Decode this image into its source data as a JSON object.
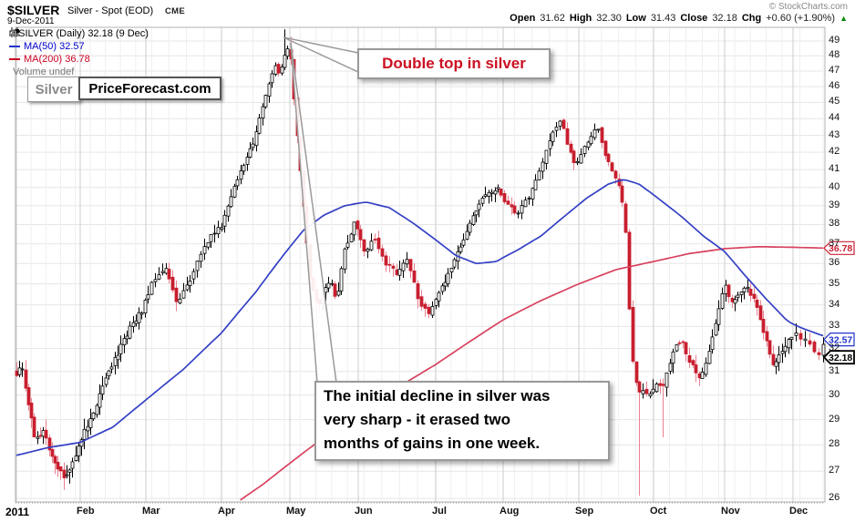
{
  "header": {
    "symbol": "$SILVER",
    "title": "Silver - Spot (EOD)",
    "exchange": "CME",
    "copyright": "© StockCharts.com",
    "date": "9-Dec-2011",
    "quote": {
      "open_label": "Open",
      "open": "31.62",
      "high_label": "High",
      "high": "32.30",
      "low_label": "Low",
      "low": "31.43",
      "close_label": "Close",
      "close": "32.18",
      "chg_label": "Chg",
      "chg": "+0.60 (+1.90%)",
      "chg_direction": "up"
    }
  },
  "legend": {
    "series": "$SILVER (Daily) 32.18 (9 Dec)",
    "ma50": "MA(50) 32.57",
    "ma200": "MA(200) 36.78",
    "volume": "Volume undef"
  },
  "annotations": {
    "logo_left": "Silver",
    "logo_right": "PriceForecast.com",
    "double_top": "Double top in silver",
    "decline_line1": "The initial decline in silver was",
    "decline_line2": "very sharp - it erased two",
    "decline_line3": "months of gains in one week."
  },
  "price_labels": [
    {
      "value": "36.78",
      "value_num": 36.78,
      "dy": 0,
      "color": "#cc2233",
      "bold": false
    },
    {
      "value": "32.57",
      "value_num": 32.57,
      "dy": 4,
      "color": "#2233cc",
      "bold": false
    },
    {
      "value": "32.18",
      "value_num": 32.18,
      "dy": 14,
      "color": "#000000",
      "bold": true
    }
  ],
  "colors": {
    "accent_red_text": "#cc1122",
    "legend_ma50_text": "#0000cc",
    "legend_ma200_text": "#cc0022",
    "legend_volume_text": "#777777",
    "chg_up_green": "#0a8a0a"
  },
  "chart_data": {
    "type": "candlestick",
    "title": "$SILVER (Daily) Jan 2011 - 9 Dec 2011, close 32.18",
    "y_axis": {
      "scale": "log",
      "min": 26,
      "max": 49,
      "ticks": [
        26,
        27,
        28,
        29,
        30,
        31,
        32,
        33,
        34,
        35,
        36,
        37,
        38,
        39,
        40,
        41,
        42,
        43,
        44,
        45,
        46,
        47,
        48,
        49
      ]
    },
    "x_axis": {
      "labels": [
        "2011",
        "Feb",
        "Mar",
        "Apr",
        "May",
        "Jun",
        "Jul",
        "Aug",
        "Sep",
        "Oct",
        "Nov",
        "Dec"
      ]
    },
    "last_close": 32.18,
    "ma50_last": 32.57,
    "ma200_last": 36.78,
    "close_anchors": [
      [
        0.0,
        30.9
      ],
      [
        0.08,
        31.2
      ],
      [
        0.18,
        29.6
      ],
      [
        0.3,
        28.1
      ],
      [
        0.42,
        28.7
      ],
      [
        0.55,
        27.5
      ],
      [
        0.68,
        26.9
      ],
      [
        0.8,
        26.8
      ],
      [
        0.92,
        27.6
      ],
      [
        1.05,
        28.5
      ],
      [
        1.25,
        29.7
      ],
      [
        1.5,
        31.4
      ],
      [
        1.75,
        32.9
      ],
      [
        1.95,
        33.8
      ],
      [
        2.1,
        35.2
      ],
      [
        2.25,
        35.8
      ],
      [
        2.4,
        34.2
      ],
      [
        2.52,
        34.7
      ],
      [
        2.7,
        36.3
      ],
      [
        2.85,
        37.4
      ],
      [
        3.0,
        37.9
      ],
      [
        3.2,
        40.3
      ],
      [
        3.45,
        42.4
      ],
      [
        3.65,
        45.6
      ],
      [
        3.78,
        47.4
      ],
      [
        3.85,
        46.8
      ],
      [
        3.95,
        48.4
      ],
      [
        4.0,
        48.5
      ],
      [
        4.06,
        45.2
      ],
      [
        4.12,
        42.2
      ],
      [
        4.2,
        38.8
      ],
      [
        4.3,
        35.0
      ],
      [
        4.4,
        33.9
      ],
      [
        4.5,
        34.6
      ],
      [
        4.6,
        35.1
      ],
      [
        4.68,
        34.2
      ],
      [
        4.8,
        36.7
      ],
      [
        4.95,
        38.2
      ],
      [
        5.08,
        36.6
      ],
      [
        5.2,
        37.3
      ],
      [
        5.35,
        36.0
      ],
      [
        5.5,
        35.5
      ],
      [
        5.62,
        36.4
      ],
      [
        5.8,
        33.9
      ],
      [
        5.92,
        33.6
      ],
      [
        6.0,
        34.4
      ],
      [
        6.15,
        35.2
      ],
      [
        6.3,
        36.3
      ],
      [
        6.5,
        38.1
      ],
      [
        6.7,
        39.4
      ],
      [
        6.9,
        40.0
      ],
      [
        7.05,
        39.1
      ],
      [
        7.18,
        38.6
      ],
      [
        7.32,
        39.4
      ],
      [
        7.5,
        41.2
      ],
      [
        7.65,
        43.2
      ],
      [
        7.76,
        44.0
      ],
      [
        7.85,
        42.4
      ],
      [
        7.95,
        41.3
      ],
      [
        8.1,
        42.6
      ],
      [
        8.24,
        43.5
      ],
      [
        8.35,
        41.9
      ],
      [
        8.45,
        40.7
      ],
      [
        8.55,
        39.9
      ],
      [
        8.62,
        38.0
      ],
      [
        8.68,
        33.0
      ],
      [
        8.74,
        30.6
      ],
      [
        8.82,
        30.1
      ],
      [
        8.95,
        30.1
      ],
      [
        9.05,
        30.5
      ],
      [
        9.12,
        30.2
      ],
      [
        9.25,
        31.7
      ],
      [
        9.38,
        32.4
      ],
      [
        9.5,
        31.5
      ],
      [
        9.62,
        30.7
      ],
      [
        9.75,
        31.4
      ],
      [
        9.88,
        33.4
      ],
      [
        10.0,
        35.0
      ],
      [
        10.08,
        34.0
      ],
      [
        10.2,
        34.4
      ],
      [
        10.32,
        34.8
      ],
      [
        10.45,
        34.2
      ],
      [
        10.58,
        32.6
      ],
      [
        10.7,
        31.2
      ],
      [
        10.82,
        31.8
      ],
      [
        10.95,
        32.6
      ],
      [
        11.05,
        32.6
      ],
      [
        11.15,
        32.3
      ],
      [
        11.24,
        31.7
      ],
      [
        11.3,
        32.18
      ]
    ],
    "ma50": [
      [
        0,
        27.6
      ],
      [
        0.5,
        27.9
      ],
      [
        1.0,
        28.1
      ],
      [
        1.5,
        28.7
      ],
      [
        2.0,
        29.8
      ],
      [
        2.5,
        31.1
      ],
      [
        3.0,
        32.7
      ],
      [
        3.5,
        34.6
      ],
      [
        3.9,
        36.4
      ],
      [
        4.2,
        37.7
      ],
      [
        4.5,
        38.5
      ],
      [
        4.8,
        39.0
      ],
      [
        5.1,
        39.2
      ],
      [
        5.4,
        38.9
      ],
      [
        5.7,
        38.1
      ],
      [
        6.0,
        37.2
      ],
      [
        6.3,
        36.4
      ],
      [
        6.6,
        36.0
      ],
      [
        6.9,
        36.1
      ],
      [
        7.2,
        36.7
      ],
      [
        7.5,
        37.4
      ],
      [
        7.8,
        38.4
      ],
      [
        8.1,
        39.4
      ],
      [
        8.4,
        40.2
      ],
      [
        8.6,
        40.45
      ],
      [
        8.8,
        40.2
      ],
      [
        9.0,
        39.6
      ],
      [
        9.4,
        38.4
      ],
      [
        9.7,
        37.4
      ],
      [
        10.0,
        36.6
      ],
      [
        10.3,
        35.4
      ],
      [
        10.6,
        34.3
      ],
      [
        10.9,
        33.3
      ],
      [
        11.1,
        32.9
      ],
      [
        11.3,
        32.57
      ]
    ],
    "ma200": [
      [
        3.25,
        25.9
      ],
      [
        3.6,
        26.5
      ],
      [
        4.0,
        27.3
      ],
      [
        4.5,
        28.3
      ],
      [
        5.0,
        29.3
      ],
      [
        5.5,
        30.3
      ],
      [
        6.0,
        31.3
      ],
      [
        6.5,
        32.3
      ],
      [
        7.0,
        33.3
      ],
      [
        7.5,
        34.2
      ],
      [
        8.0,
        35.0
      ],
      [
        8.5,
        35.7
      ],
      [
        9.0,
        36.1
      ],
      [
        9.5,
        36.5
      ],
      [
        10.0,
        36.75
      ],
      [
        10.5,
        36.85
      ],
      [
        11.0,
        36.82
      ],
      [
        11.3,
        36.78
      ]
    ],
    "wick_events": [
      {
        "m": 3.9,
        "high": 49.8
      },
      {
        "m": 4.01,
        "high": 49.3
      },
      {
        "m": 4.36,
        "low": 32.3
      },
      {
        "m": 8.8,
        "low": 26.1
      },
      {
        "m": 9.12,
        "low": 28.3
      }
    ],
    "callout_wedges": [
      "311,41 393,58 393,79",
      "319,47 348,420 369,420"
    ],
    "colors": {
      "up_body": "#ffffff",
      "up_stroke": "#000000",
      "down": "#c81e2e",
      "down_wick": "#ea8190",
      "ma50": "#3440c4",
      "ma200": "#d8425f",
      "grid": "#e6e6e6",
      "grid_week": "#efefef",
      "grid_month": "#cccccc",
      "border": "#b3b3b3"
    }
  }
}
